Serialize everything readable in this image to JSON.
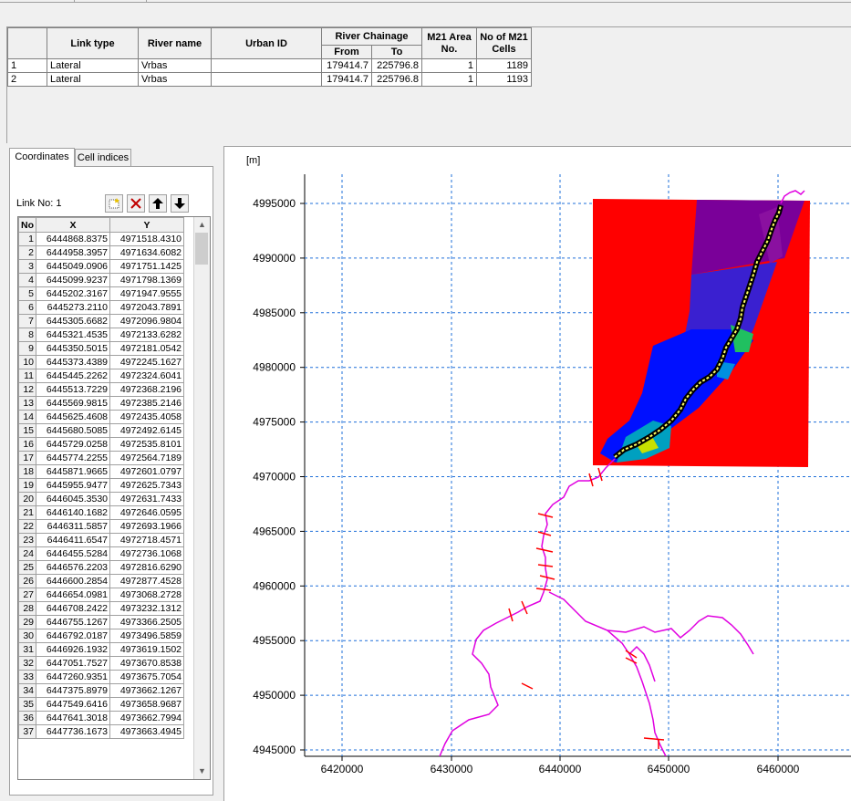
{
  "links_table": {
    "headers": {
      "link_type": "Link type",
      "river_name": "River name",
      "urban_id": "Urban ID",
      "river_chainage": "River Chainage",
      "from": "From",
      "to": "To",
      "m21_area": "M21 Area No.",
      "m21_cells": "No of M21 Cells"
    },
    "rows": [
      {
        "no": "1",
        "link_type": "Lateral",
        "river_name": "Vrbas",
        "urban_id": "",
        "from": "179414.7",
        "to": "225796.8",
        "area": "1",
        "cells": "1189"
      },
      {
        "no": "2",
        "link_type": "Lateral",
        "river_name": "Vrbas",
        "urban_id": "",
        "from": "179414.7",
        "to": "225796.8",
        "area": "1",
        "cells": "1193"
      }
    ]
  },
  "tabs": [
    {
      "label": "Coordinates",
      "active": true
    },
    {
      "label": "Cell indices",
      "active": false
    }
  ],
  "link_no_label": "Link No: 1",
  "toolbar_icons": [
    "new-row-icon",
    "delete-icon",
    "move-up-icon",
    "move-down-icon"
  ],
  "coord_headers": {
    "no": "No",
    "x": "X",
    "y": "Y"
  },
  "coordinates": [
    [
      "1",
      "6444868.8375",
      "4971518.4310"
    ],
    [
      "2",
      "6444958.3957",
      "4971634.6082"
    ],
    [
      "3",
      "6445049.0906",
      "4971751.1425"
    ],
    [
      "4",
      "6445099.9237",
      "4971798.1369"
    ],
    [
      "5",
      "6445202.3167",
      "4971947.9555"
    ],
    [
      "6",
      "6445273.2110",
      "4972043.7891"
    ],
    [
      "7",
      "6445305.6682",
      "4972096.9804"
    ],
    [
      "8",
      "6445321.4535",
      "4972133.6282"
    ],
    [
      "9",
      "6445350.5015",
      "4972181.0542"
    ],
    [
      "10",
      "6445373.4389",
      "4972245.1627"
    ],
    [
      "11",
      "6445445.2262",
      "4972324.6041"
    ],
    [
      "12",
      "6445513.7229",
      "4972368.2196"
    ],
    [
      "13",
      "6445569.9815",
      "4972385.2146"
    ],
    [
      "14",
      "6445625.4608",
      "4972435.4058"
    ],
    [
      "15",
      "6445680.5085",
      "4972492.6145"
    ],
    [
      "16",
      "6445729.0258",
      "4972535.8101"
    ],
    [
      "17",
      "6445774.2255",
      "4972564.7189"
    ],
    [
      "18",
      "6445871.9665",
      "4972601.0797"
    ],
    [
      "19",
      "6445955.9477",
      "4972625.7343"
    ],
    [
      "20",
      "6446045.3530",
      "4972631.7433"
    ],
    [
      "21",
      "6446140.1682",
      "4972646.0595"
    ],
    [
      "22",
      "6446311.5857",
      "4972693.1966"
    ],
    [
      "23",
      "6446411.6547",
      "4972718.4571"
    ],
    [
      "24",
      "6446455.5284",
      "4972736.1068"
    ],
    [
      "25",
      "6446576.2203",
      "4972816.6290"
    ],
    [
      "26",
      "6446600.2854",
      "4972877.4528"
    ],
    [
      "27",
      "6446654.0981",
      "4973068.2728"
    ],
    [
      "28",
      "6446708.2422",
      "4973232.1312"
    ],
    [
      "29",
      "6446755.1267",
      "4973366.2505"
    ],
    [
      "30",
      "6446792.0187",
      "4973496.5859"
    ],
    [
      "31",
      "6446926.1932",
      "4973619.1502"
    ],
    [
      "32",
      "6447051.7527",
      "4973670.8538"
    ],
    [
      "33",
      "6447260.9351",
      "4973675.7054"
    ],
    [
      "34",
      "6447375.8979",
      "4973662.1267"
    ],
    [
      "35",
      "6447549.6416",
      "4973658.9687"
    ],
    [
      "36",
      "6447641.3018",
      "4973662.7994"
    ],
    [
      "37",
      "6447736.1673",
      "4973663.4945"
    ]
  ],
  "map": {
    "unit_label": "[m]",
    "x_ticks": [
      "6420000",
      "6430000",
      "6440000",
      "6450000",
      "6460000"
    ],
    "y_ticks": [
      "4995000",
      "4990000",
      "4985000",
      "4980000",
      "4975000",
      "4970000",
      "4965000",
      "4960000",
      "4955000",
      "4950000",
      "4945000"
    ],
    "colors": {
      "background": "#ff0000",
      "deep": "#7a0099",
      "mid": "#2a14e0",
      "shallow": "#0000ff",
      "river": "#e000e0",
      "links": "#ff0000",
      "grid": "#1e6fd9"
    }
  }
}
